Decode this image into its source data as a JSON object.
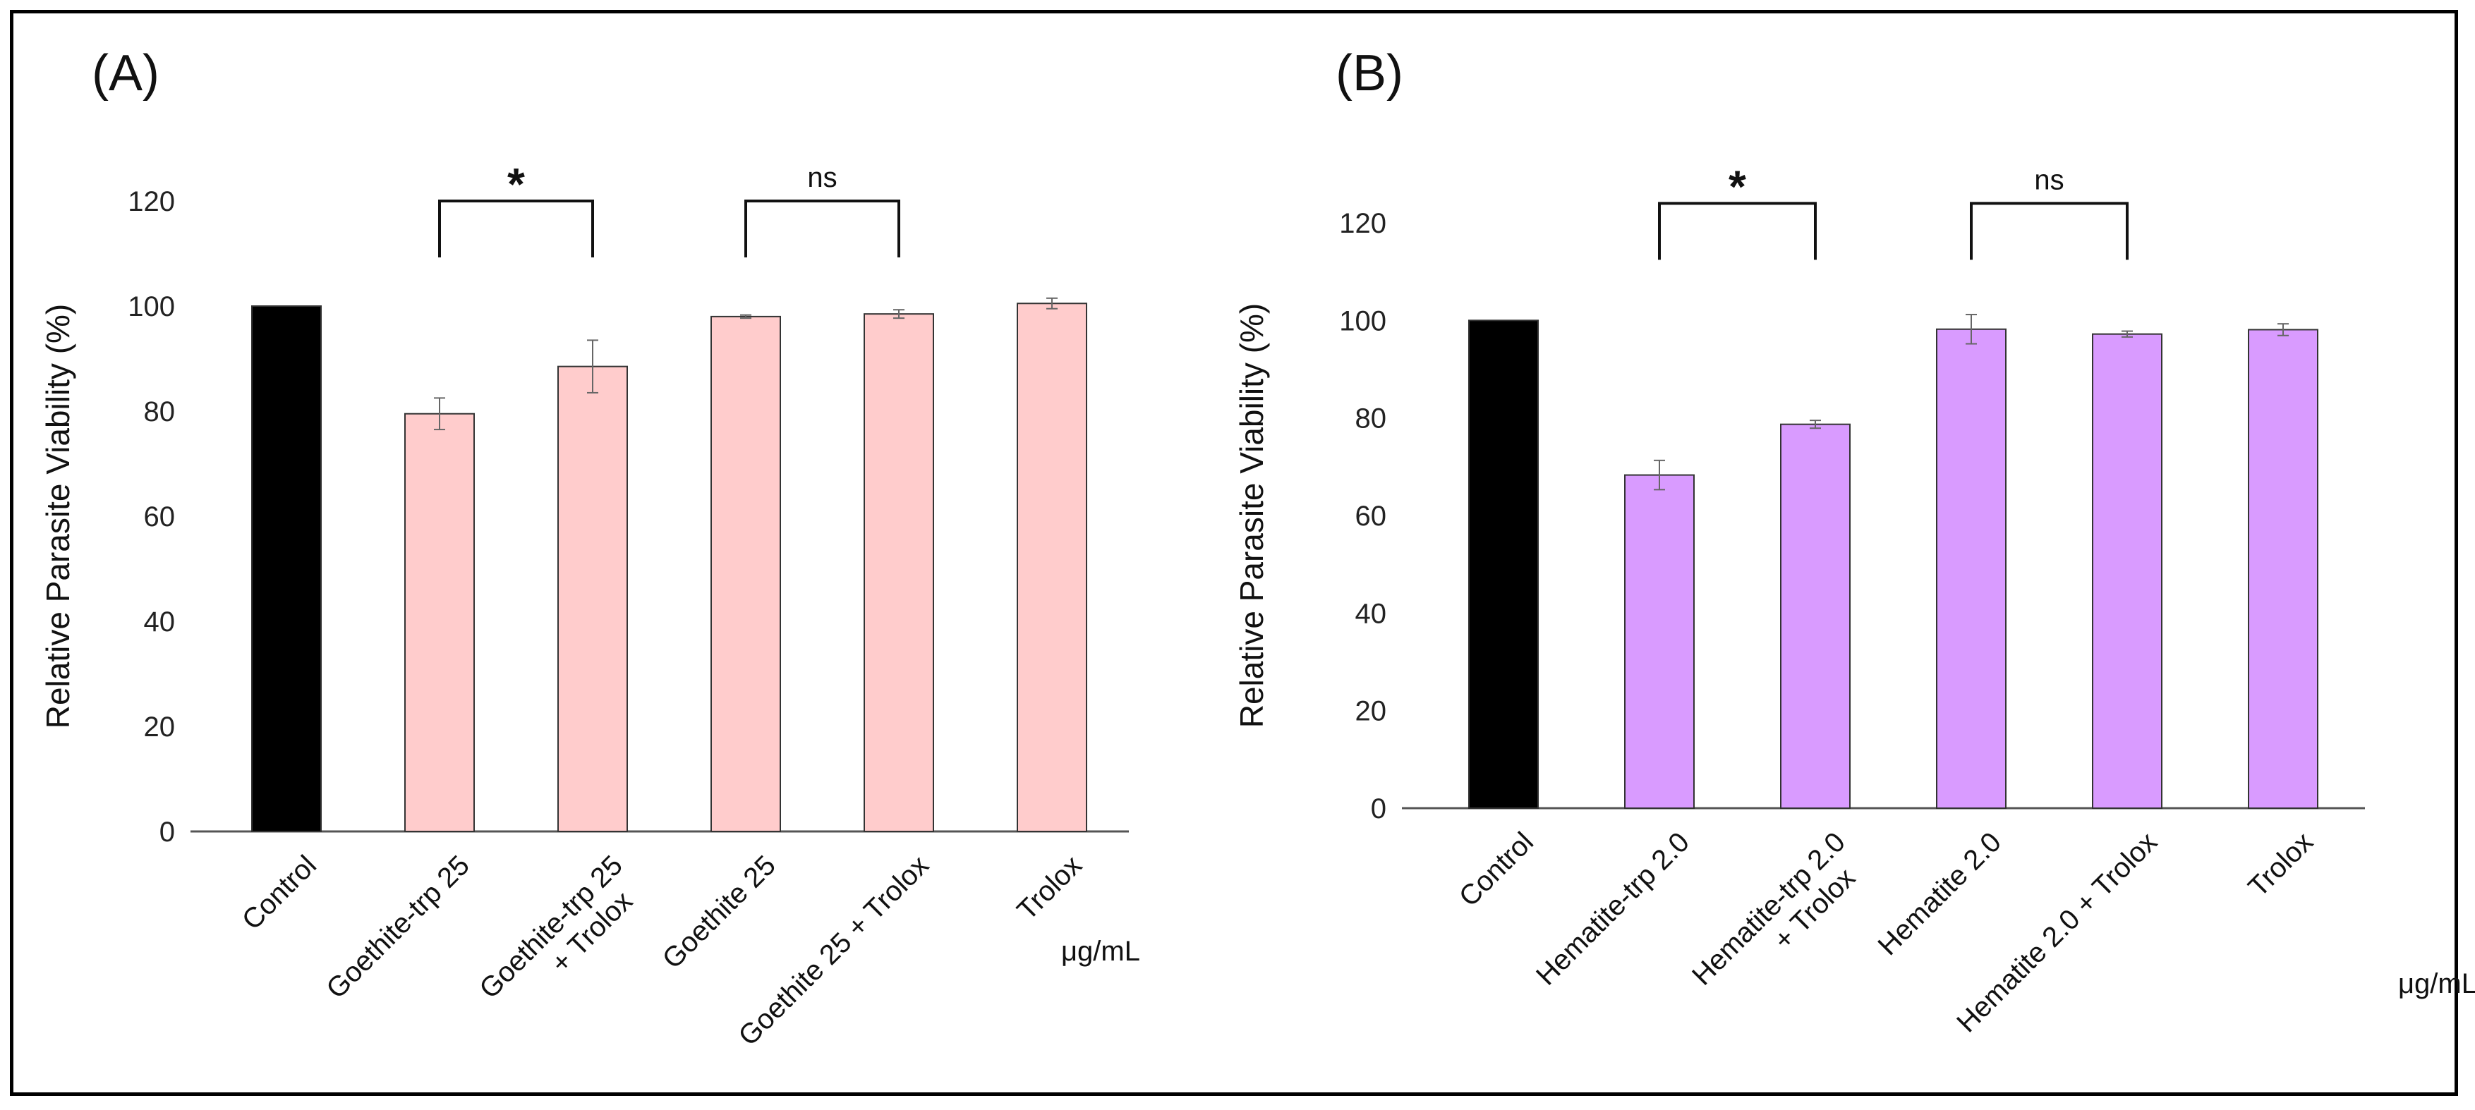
{
  "colors": {
    "control": "#000000",
    "panel_a": "#ffcccc",
    "panel_b": "#d99bff",
    "axis": "#555555"
  },
  "chart_data": [
    {
      "type": "bar",
      "panel_label": "(A)",
      "ylabel": "Relative Parasite Viability (%)",
      "unit_label": "μg/mL",
      "ylim": [
        0,
        120
      ],
      "ticks": [
        "0",
        "20",
        "40",
        "60",
        "80",
        "100",
        "120"
      ],
      "categories": [
        [
          "Control"
        ],
        [
          "Goethite-trp 25"
        ],
        [
          "Goethite-trp 25",
          "+ Trolox"
        ],
        [
          "Goethite 25"
        ],
        [
          "Goethite 25 + Trolox"
        ],
        [
          "Trolox"
        ]
      ],
      "values": [
        100,
        79.5,
        88.5,
        98,
        98.5,
        100.5
      ],
      "errors": [
        0,
        3,
        5,
        0.3,
        0.8,
        1
      ],
      "significance": [
        {
          "from": 1,
          "to": 2,
          "label": "*",
          "level": 120
        },
        {
          "from": 3,
          "to": 4,
          "label": "ns",
          "level": 120
        }
      ]
    },
    {
      "type": "bar",
      "panel_label": "(B)",
      "ylabel": "Relative Parasite Viability (%)",
      "unit_label": "μg/mL",
      "ylim": [
        0,
        120
      ],
      "ticks": [
        "0",
        "20",
        "40",
        "60",
        "80",
        "100",
        "120"
      ],
      "categories": [
        [
          "Control"
        ],
        [
          "Hematite-trp 2.0"
        ],
        [
          "Hematite-trp 2.0",
          "+ Trolox"
        ],
        [
          "Hematite 2.0"
        ],
        [
          "Hematite 2.0 + Trolox"
        ],
        [
          "Trolox"
        ]
      ],
      "values": [
        100,
        68.3,
        78.7,
        98.2,
        97.2,
        98.1
      ],
      "errors": [
        0,
        3,
        0.8,
        3,
        0.6,
        1.2
      ],
      "significance": [
        {
          "from": 1,
          "to": 2,
          "label": "*",
          "level": 124
        },
        {
          "from": 3,
          "to": 4,
          "label": "ns",
          "level": 124
        }
      ]
    }
  ]
}
